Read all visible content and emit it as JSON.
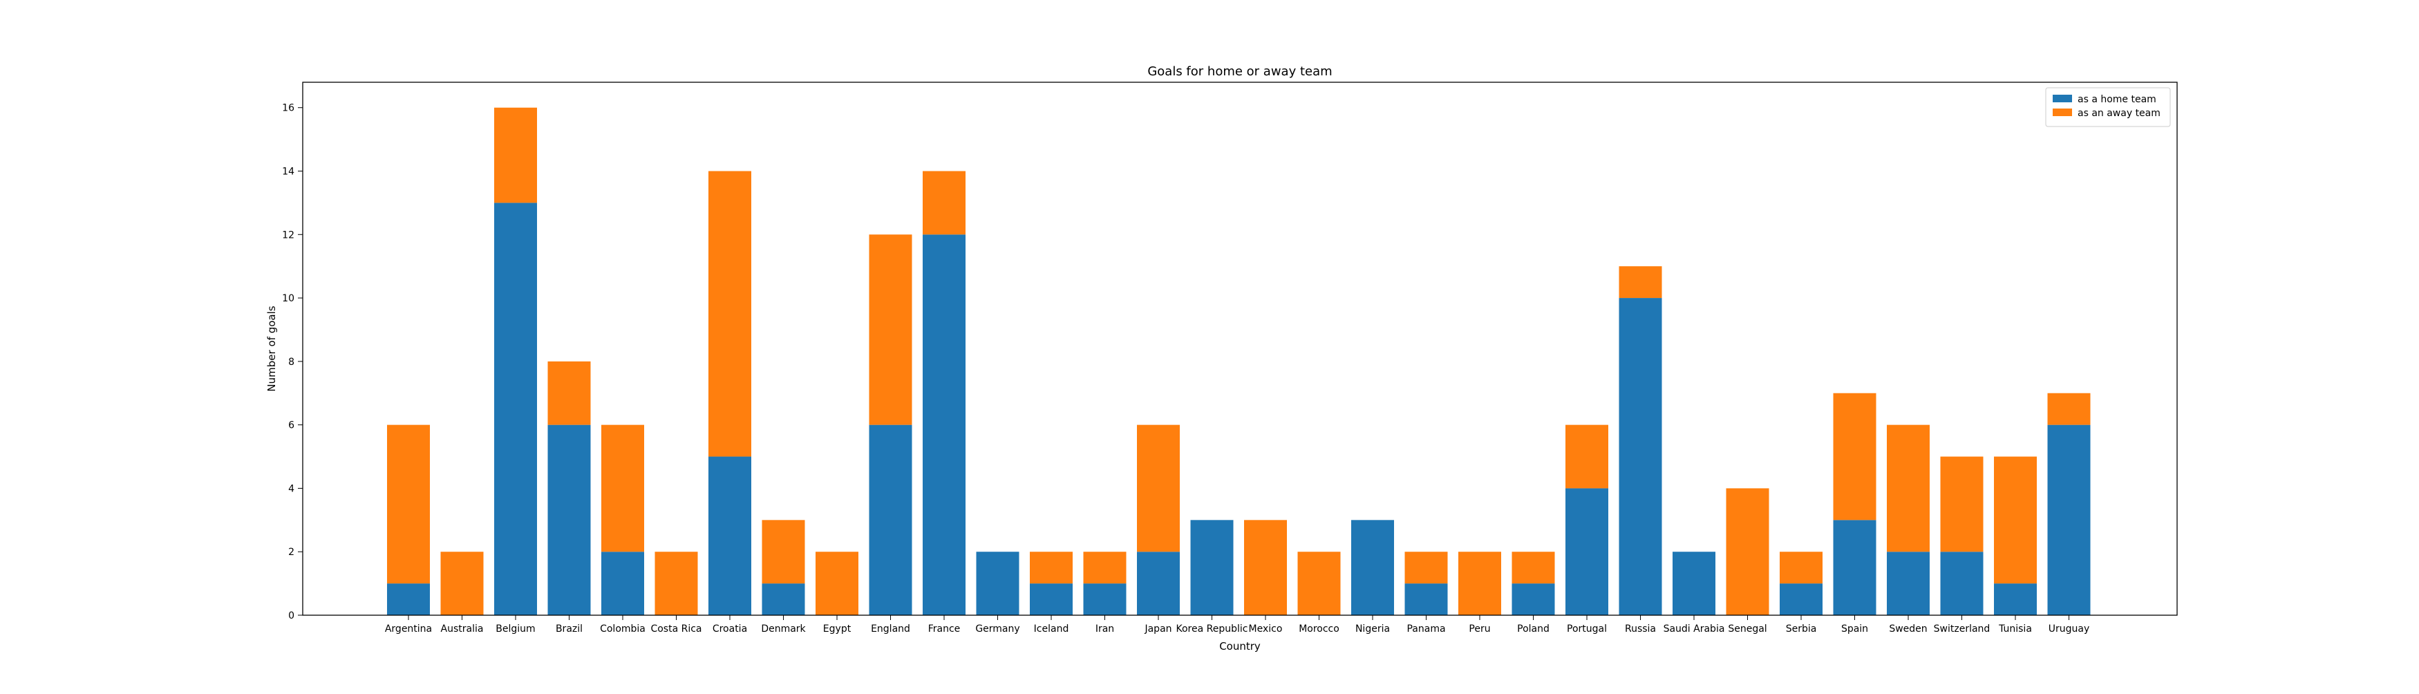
{
  "chart_data": {
    "type": "bar",
    "stacked": true,
    "title": "Goals for home or away team",
    "xlabel": "Country",
    "ylabel": "Number of goals",
    "ylim": [
      0,
      16.8
    ],
    "yticks": [
      0,
      2,
      4,
      6,
      8,
      10,
      12,
      14,
      16
    ],
    "grid": false,
    "legend_position": "top-right",
    "categories": [
      "Argentina",
      "Australia",
      "Belgium",
      "Brazil",
      "Colombia",
      "Costa Rica",
      "Croatia",
      "Denmark",
      "Egypt",
      "England",
      "France",
      "Germany",
      "Iceland",
      "Iran",
      "Japan",
      "Korea Republic",
      "Mexico",
      "Morocco",
      "Nigeria",
      "Panama",
      "Peru",
      "Poland",
      "Portugal",
      "Russia",
      "Saudi Arabia",
      "Senegal",
      "Serbia",
      "Spain",
      "Sweden",
      "Switzerland",
      "Tunisia",
      "Uruguay"
    ],
    "series": [
      {
        "name": "as a home team",
        "color": "#1f77b4",
        "values": [
          1,
          0,
          13,
          6,
          2,
          0,
          5,
          1,
          0,
          6,
          12,
          2,
          1,
          1,
          2,
          3,
          0,
          0,
          3,
          1,
          0,
          1,
          4,
          10,
          2,
          0,
          1,
          3,
          2,
          2,
          1,
          6
        ]
      },
      {
        "name": "as an away team",
        "color": "#ff7f0e",
        "values": [
          5,
          2,
          3,
          2,
          4,
          2,
          9,
          2,
          2,
          6,
          2,
          0,
          1,
          1,
          4,
          0,
          3,
          2,
          0,
          1,
          2,
          1,
          2,
          1,
          0,
          4,
          1,
          4,
          4,
          3,
          4,
          1
        ]
      }
    ]
  }
}
